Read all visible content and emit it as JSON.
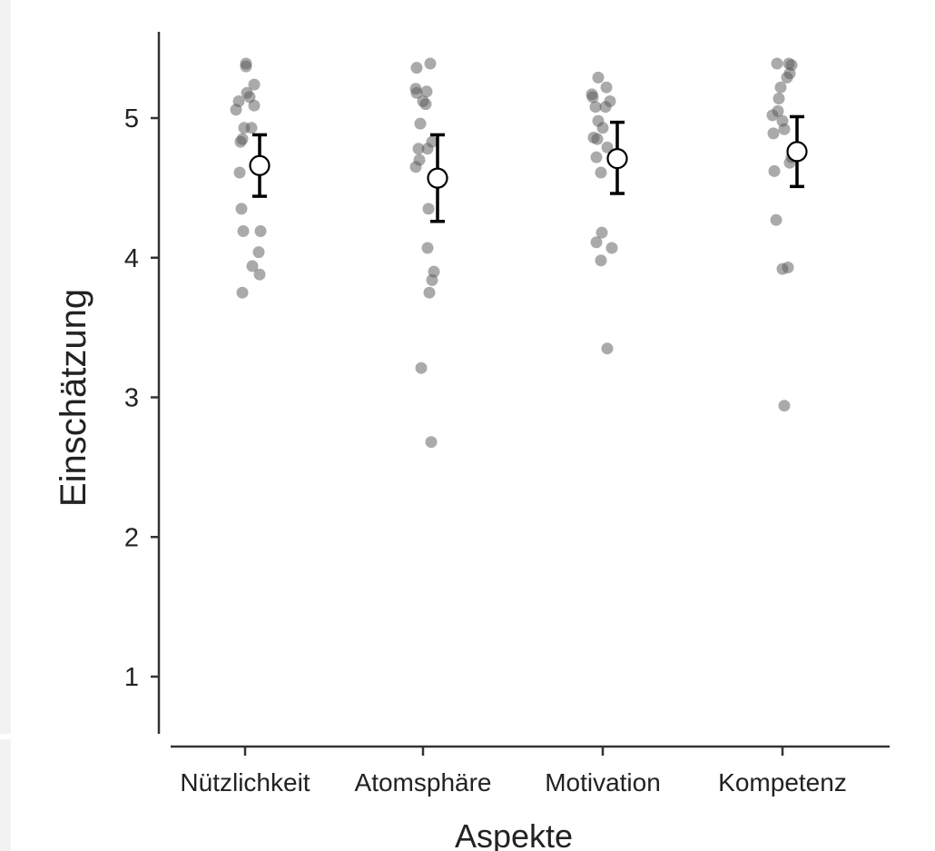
{
  "chart_data": {
    "type": "scatter",
    "title": "",
    "xlabel": "Aspekte",
    "ylabel": "Einschätzung",
    "categories": [
      "Nützlichkeit",
      "Atomsphäre",
      "Motivation",
      "Kompetenz"
    ],
    "ylim": [
      0.6,
      5.6
    ],
    "yticks": [
      1,
      2,
      3,
      4,
      5
    ],
    "grid": false,
    "legend": "none",
    "colors": {
      "points": "#555555",
      "mean_fill": "#ffffff",
      "mean_stroke": "#000000",
      "errorbar": "#000000",
      "axis": "#333333"
    },
    "summary": [
      {
        "category": "Nützlichkeit",
        "mean": 4.66,
        "lower": 4.44,
        "upper": 4.88
      },
      {
        "category": "Atomsphäre",
        "mean": 4.57,
        "lower": 4.26,
        "upper": 4.88
      },
      {
        "category": "Motivation",
        "mean": 4.71,
        "lower": 4.46,
        "upper": 4.97
      },
      {
        "category": "Kompetenz",
        "mean": 4.76,
        "lower": 4.51,
        "upper": 5.01
      }
    ],
    "series": [
      {
        "category": "Nützlichkeit",
        "points": [
          {
            "jitter": 0.01,
            "y": 5.39
          },
          {
            "jitter": 0.01,
            "y": 5.37
          },
          {
            "jitter": 0.1,
            "y": 5.24
          },
          {
            "jitter": 0.02,
            "y": 5.18
          },
          {
            "jitter": 0.05,
            "y": 5.15
          },
          {
            "jitter": -0.07,
            "y": 5.12
          },
          {
            "jitter": 0.1,
            "y": 5.09
          },
          {
            "jitter": -0.1,
            "y": 5.06
          },
          {
            "jitter": -0.01,
            "y": 4.93
          },
          {
            "jitter": 0.07,
            "y": 4.93
          },
          {
            "jitter": -0.03,
            "y": 4.85
          },
          {
            "jitter": -0.05,
            "y": 4.83
          },
          {
            "jitter": -0.06,
            "y": 4.61
          },
          {
            "jitter": -0.04,
            "y": 4.35
          },
          {
            "jitter": -0.02,
            "y": 4.19
          },
          {
            "jitter": 0.17,
            "y": 4.19
          },
          {
            "jitter": 0.15,
            "y": 4.04
          },
          {
            "jitter": 0.08,
            "y": 3.94
          },
          {
            "jitter": 0.16,
            "y": 3.88
          },
          {
            "jitter": -0.03,
            "y": 3.75
          }
        ]
      },
      {
        "category": "Atomsphäre",
        "points": [
          {
            "jitter": -0.07,
            "y": 5.36
          },
          {
            "jitter": 0.08,
            "y": 5.39
          },
          {
            "jitter": -0.08,
            "y": 5.21
          },
          {
            "jitter": -0.07,
            "y": 5.18
          },
          {
            "jitter": 0.04,
            "y": 5.19
          },
          {
            "jitter": 0.0,
            "y": 5.12
          },
          {
            "jitter": 0.03,
            "y": 5.1
          },
          {
            "jitter": -0.03,
            "y": 4.96
          },
          {
            "jitter": 0.1,
            "y": 4.83
          },
          {
            "jitter": -0.05,
            "y": 4.78
          },
          {
            "jitter": 0.05,
            "y": 4.78
          },
          {
            "jitter": -0.04,
            "y": 4.7
          },
          {
            "jitter": -0.08,
            "y": 4.65
          },
          {
            "jitter": 0.06,
            "y": 4.35
          },
          {
            "jitter": 0.05,
            "y": 4.07
          },
          {
            "jitter": 0.12,
            "y": 3.9
          },
          {
            "jitter": 0.1,
            "y": 3.84
          },
          {
            "jitter": 0.07,
            "y": 3.75
          },
          {
            "jitter": -0.02,
            "y": 3.21
          },
          {
            "jitter": 0.09,
            "y": 2.68
          }
        ]
      },
      {
        "category": "Motivation",
        "points": [
          {
            "jitter": -0.05,
            "y": 5.29
          },
          {
            "jitter": 0.04,
            "y": 5.22
          },
          {
            "jitter": -0.12,
            "y": 5.17
          },
          {
            "jitter": -0.11,
            "y": 5.15
          },
          {
            "jitter": 0.08,
            "y": 5.12
          },
          {
            "jitter": -0.08,
            "y": 5.08
          },
          {
            "jitter": 0.03,
            "y": 5.08
          },
          {
            "jitter": -0.05,
            "y": 4.98
          },
          {
            "jitter": 0.0,
            "y": 4.93
          },
          {
            "jitter": -0.1,
            "y": 4.86
          },
          {
            "jitter": -0.06,
            "y": 4.85
          },
          {
            "jitter": 0.05,
            "y": 4.79
          },
          {
            "jitter": -0.07,
            "y": 4.72
          },
          {
            "jitter": -0.02,
            "y": 4.61
          },
          {
            "jitter": -0.01,
            "y": 4.18
          },
          {
            "jitter": -0.07,
            "y": 4.11
          },
          {
            "jitter": 0.1,
            "y": 4.07
          },
          {
            "jitter": -0.02,
            "y": 3.98
          },
          {
            "jitter": 0.05,
            "y": 3.35
          }
        ]
      },
      {
        "category": "Kompetenz",
        "points": [
          {
            "jitter": -0.06,
            "y": 5.39
          },
          {
            "jitter": 0.07,
            "y": 5.39
          },
          {
            "jitter": 0.1,
            "y": 5.38
          },
          {
            "jitter": 0.08,
            "y": 5.32
          },
          {
            "jitter": 0.05,
            "y": 5.29
          },
          {
            "jitter": -0.02,
            "y": 5.22
          },
          {
            "jitter": -0.04,
            "y": 5.14
          },
          {
            "jitter": -0.05,
            "y": 5.05
          },
          {
            "jitter": -0.11,
            "y": 5.02
          },
          {
            "jitter": 0.0,
            "y": 4.98
          },
          {
            "jitter": 0.02,
            "y": 4.92
          },
          {
            "jitter": -0.1,
            "y": 4.89
          },
          {
            "jitter": 0.1,
            "y": 4.72
          },
          {
            "jitter": 0.08,
            "y": 4.68
          },
          {
            "jitter": -0.09,
            "y": 4.62
          },
          {
            "jitter": -0.07,
            "y": 4.27
          },
          {
            "jitter": 0.06,
            "y": 3.93
          },
          {
            "jitter": 0.0,
            "y": 3.92
          },
          {
            "jitter": 0.02,
            "y": 2.94
          }
        ]
      }
    ]
  }
}
